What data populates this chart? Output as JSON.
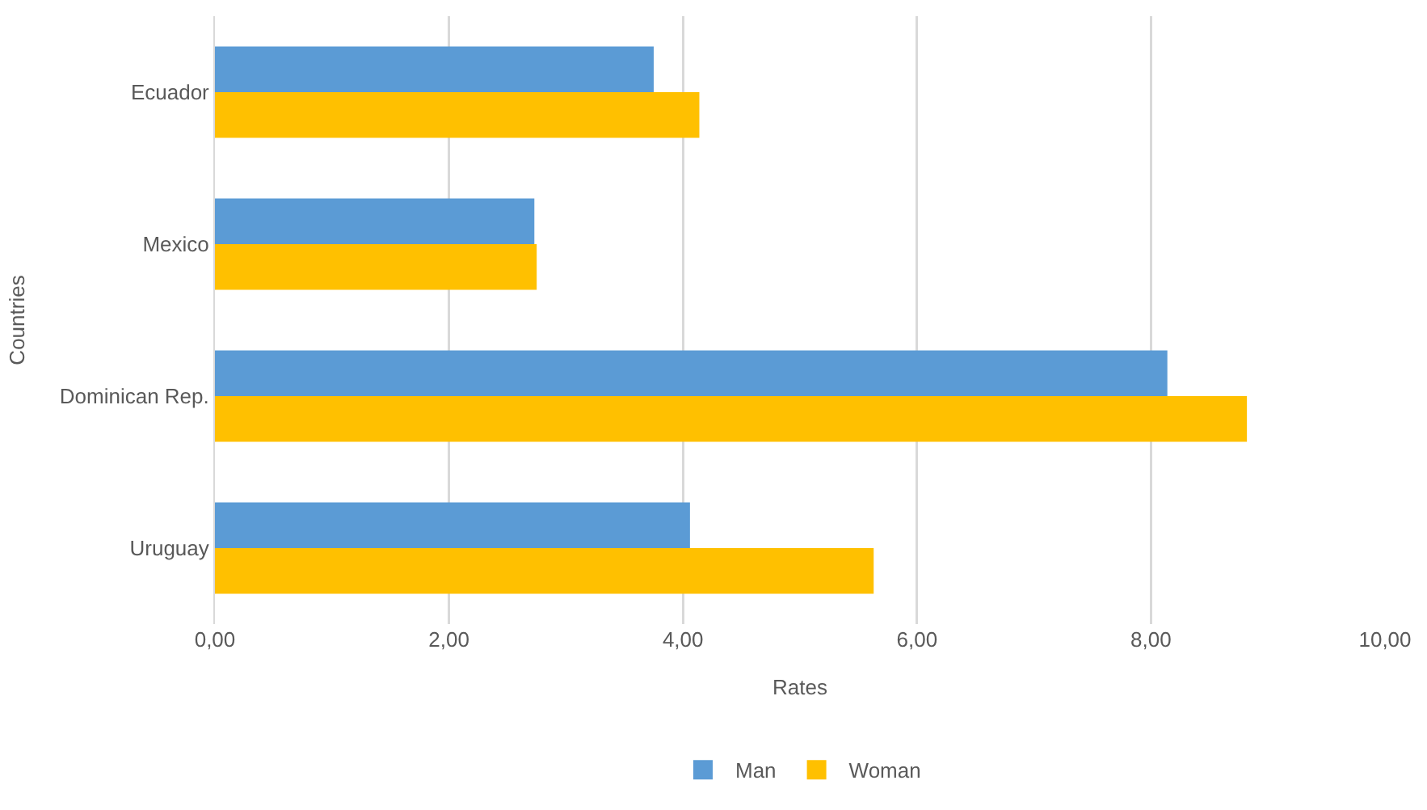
{
  "chart_data": {
    "type": "bar",
    "orientation": "horizontal",
    "xlabel": "Rates",
    "ylabel": "Countries",
    "categories": [
      "Ecuador",
      "Mexico",
      "Dominican Rep.",
      "Uruguay"
    ],
    "series": [
      {
        "name": "Man",
        "color": "#5b9bd5",
        "values": [
          3.75,
          2.73,
          8.14,
          4.06
        ]
      },
      {
        "name": "Woman",
        "color": "#ffc000",
        "values": [
          4.14,
          2.75,
          8.82,
          5.63
        ]
      }
    ],
    "xlim": [
      0,
      10
    ],
    "xticks": [
      {
        "value": 0,
        "label": "0,00"
      },
      {
        "value": 2,
        "label": "2,00"
      },
      {
        "value": 4,
        "label": "4,00"
      },
      {
        "value": 6,
        "label": "6,00"
      },
      {
        "value": 8,
        "label": "8,00"
      },
      {
        "value": 10,
        "label": "10,00"
      }
    ],
    "grid": "x",
    "legend": "bottom"
  }
}
